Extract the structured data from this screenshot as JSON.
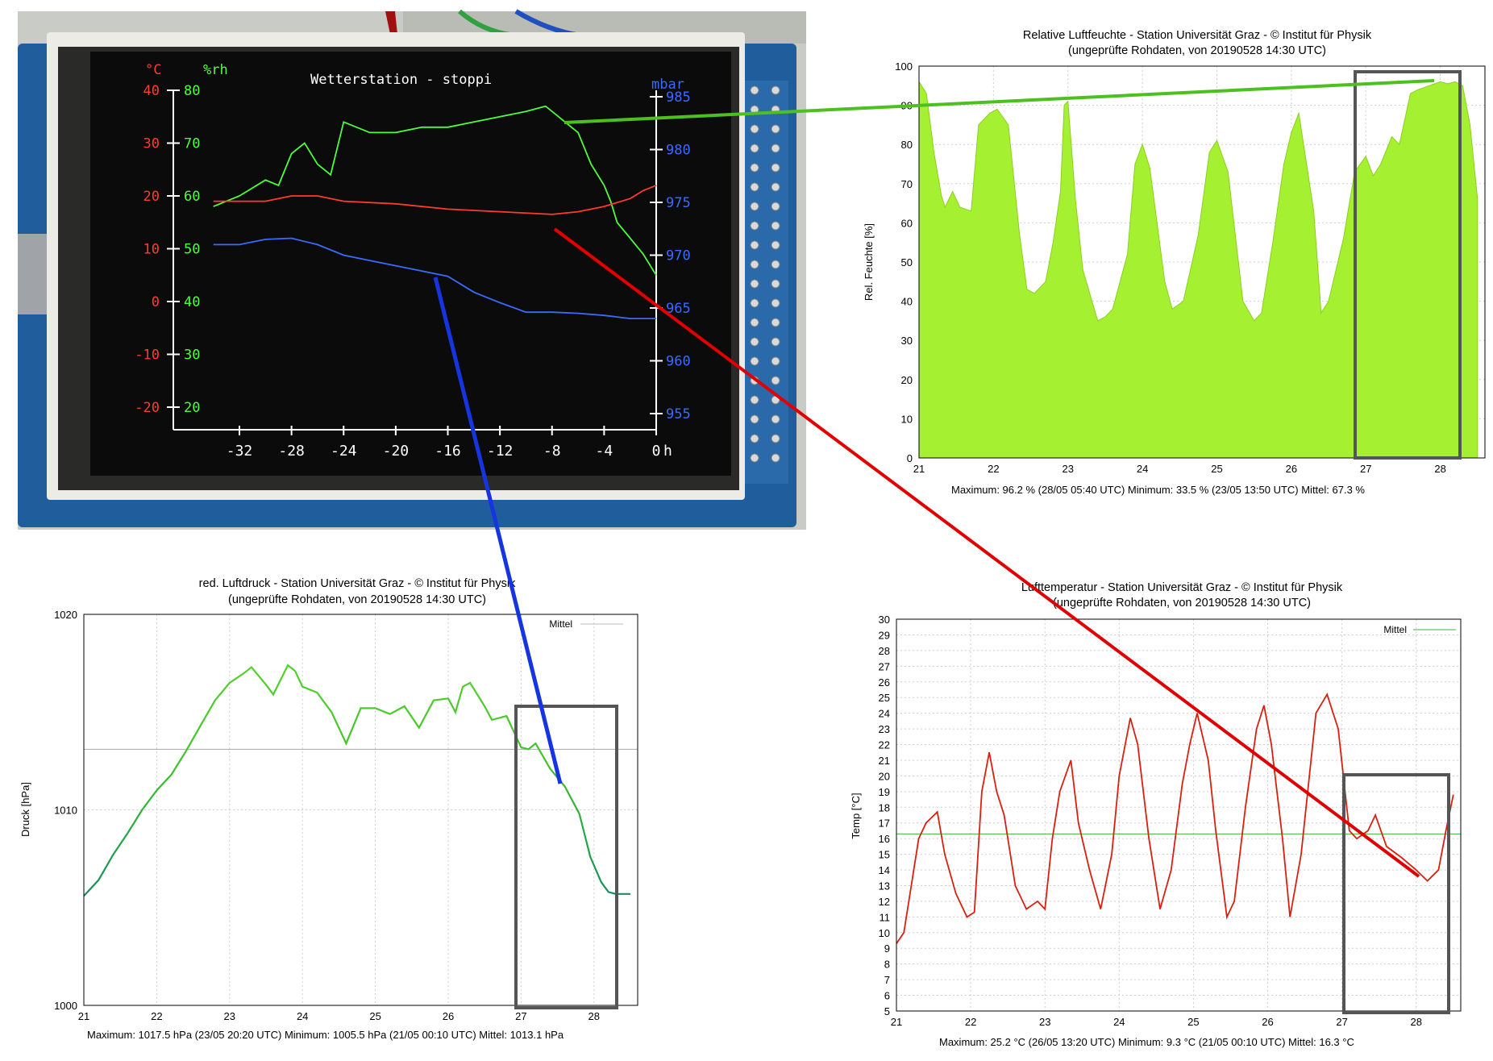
{
  "chart_data": [
    {
      "type": "line",
      "kind": "lcd-photo",
      "title": "Wetterstation - stoppi",
      "x_unit": "h",
      "x_ticks": [
        -32,
        -28,
        -24,
        -20,
        -16,
        -12,
        -8,
        -4,
        0
      ],
      "axes": {
        "temperature": {
          "unit": "°C",
          "ticks": [
            40,
            30,
            20,
            10,
            0,
            -10,
            -20
          ],
          "color": "#ff3b2f"
        },
        "humidity": {
          "unit": "%rh",
          "ticks": [
            80,
            70,
            60,
            50,
            40,
            30,
            20
          ],
          "color": "#4cff3a"
        },
        "pressure": {
          "unit": "mbar",
          "ticks": [
            985,
            980,
            975,
            970,
            965,
            960,
            955
          ],
          "color": "#3a6bff"
        }
      },
      "series": [
        {
          "name": "%rh",
          "color": "#4cff3a",
          "x": [
            -34,
            -32,
            -30,
            -29,
            -28,
            -27,
            -26,
            -25,
            -24,
            -22,
            -20,
            -18,
            -16,
            -14,
            -12,
            -10,
            -8.5,
            -8,
            -7,
            -6,
            -5,
            -4,
            -3.5,
            -3,
            -2,
            -1,
            0
          ],
          "y": [
            58,
            60,
            63,
            62,
            68,
            70,
            66,
            64,
            74,
            72,
            72,
            73,
            73,
            74,
            75,
            76,
            77,
            76,
            74,
            72,
            66,
            62,
            59,
            55,
            52,
            49,
            45
          ]
        },
        {
          "name": "°C",
          "color": "#ff3b2f",
          "x": [
            -34,
            -30,
            -28,
            -26,
            -24,
            -20,
            -16,
            -12,
            -8,
            -6,
            -4,
            -2,
            -1,
            0
          ],
          "y": [
            19,
            19,
            20,
            20,
            19,
            18.5,
            17.5,
            17,
            16.5,
            17,
            18,
            19.5,
            21,
            22
          ]
        },
        {
          "name": "mbar",
          "color": "#3a6bff",
          "x": [
            -34,
            -32,
            -30,
            -28,
            -26,
            -24,
            -22,
            -20,
            -18,
            -16,
            -14,
            -12,
            -10,
            -8,
            -6,
            -4,
            -2,
            0
          ],
          "y": [
            971,
            971,
            971.5,
            971.6,
            971,
            970,
            969.5,
            969,
            968.5,
            968,
            966.5,
            965.5,
            964.6,
            964.6,
            964.5,
            964.3,
            964.0,
            964.0
          ]
        }
      ]
    },
    {
      "type": "area",
      "title": "Relative Luftfeuchte - Station Universität Graz -  © Institut für Physik",
      "subtitle": "(ungeprüfte Rohdaten, von 20190528 14:30 UTC)",
      "ylabel": "Rel. Feuchte [%]",
      "xlim": [
        21,
        28.6
      ],
      "ylim": [
        0,
        100
      ],
      "x_ticks": [
        21,
        22,
        23,
        24,
        25,
        26,
        27,
        28
      ],
      "y_ticks": [
        0,
        10,
        20,
        30,
        40,
        50,
        60,
        70,
        80,
        90,
        100
      ],
      "color": "#a6f032",
      "footer": "Maximum: 96.2 % (28/05 05:40 UTC)   Minimum: 33.5 % (23/05 13:50 UTC)   Mittel: 67.3 %",
      "x": [
        21.0,
        21.1,
        21.2,
        21.3,
        21.35,
        21.45,
        21.55,
        21.7,
        21.8,
        21.95,
        22.05,
        22.2,
        22.35,
        22.45,
        22.55,
        22.7,
        22.8,
        22.9,
        22.95,
        23.0,
        23.1,
        23.2,
        23.4,
        23.5,
        23.6,
        23.8,
        23.9,
        24.0,
        24.1,
        24.3,
        24.4,
        24.55,
        24.75,
        24.9,
        25.0,
        25.15,
        25.35,
        25.5,
        25.6,
        25.75,
        25.9,
        26.0,
        26.1,
        26.3,
        26.4,
        26.5,
        26.7,
        26.85,
        27.0,
        27.1,
        27.2,
        27.35,
        27.45,
        27.6,
        27.7,
        27.85,
        28.0,
        28.1,
        28.2,
        28.3,
        28.4,
        28.5
      ],
      "y": [
        96,
        93,
        78,
        67,
        64,
        68,
        64,
        63,
        85,
        88,
        89,
        85,
        57,
        43,
        42,
        45,
        55,
        68,
        90,
        91,
        66,
        48,
        35,
        36,
        38,
        52,
        75,
        80,
        74,
        45,
        38,
        40,
        57,
        78,
        81,
        73,
        40,
        35,
        37,
        55,
        75,
        83,
        88,
        63,
        37,
        40,
        56,
        73,
        77,
        72,
        75,
        82,
        80,
        93,
        94,
        95,
        96,
        95.5,
        96,
        95,
        85,
        66
      ]
    },
    {
      "type": "line",
      "title": "red. Luftdruck - Station Universität Graz -  © Institut für Physik",
      "subtitle": "(ungeprüfte Rohdaten, von 20190528 14:30 UTC)",
      "ylabel": "Druck [hPa]",
      "xlim": [
        21,
        28.6
      ],
      "ylim": [
        1000,
        1020
      ],
      "x_ticks": [
        21,
        22,
        23,
        24,
        25,
        26,
        27,
        28
      ],
      "y_ticks": [
        1000,
        1010,
        1020
      ],
      "legend": [
        "Mittel"
      ],
      "mean": 1013.1,
      "footer": "Maximum: 1017.5 hPa (23/05 20:20 UTC)   Minimum: 1005.5 hPa (21/05 00:10 UTC)   Mittel: 1013.1 hPa",
      "x": [
        21.0,
        21.2,
        21.4,
        21.6,
        21.8,
        22.0,
        22.2,
        22.4,
        22.6,
        22.8,
        23.0,
        23.2,
        23.3,
        23.5,
        23.6,
        23.8,
        23.9,
        24.0,
        24.2,
        24.4,
        24.6,
        24.8,
        25.0,
        25.2,
        25.4,
        25.6,
        25.8,
        26.0,
        26.1,
        26.2,
        26.3,
        26.5,
        26.6,
        26.8,
        27.0,
        27.1,
        27.2,
        27.4,
        27.6,
        27.8,
        27.95,
        28.1,
        28.2,
        28.3,
        28.5
      ],
      "y": [
        1005.6,
        1006.4,
        1007.7,
        1008.8,
        1010.0,
        1011.0,
        1011.8,
        1013.0,
        1014.3,
        1015.6,
        1016.5,
        1017.0,
        1017.3,
        1016.4,
        1015.9,
        1017.4,
        1017.1,
        1016.3,
        1016.0,
        1015.0,
        1013.4,
        1015.2,
        1015.2,
        1014.9,
        1015.3,
        1014.2,
        1015.6,
        1015.7,
        1015.0,
        1016.3,
        1016.5,
        1015.3,
        1014.6,
        1014.8,
        1013.2,
        1013.1,
        1013.4,
        1012.1,
        1011.2,
        1009.8,
        1007.6,
        1006.3,
        1005.8,
        1005.7,
        1005.7
      ]
    },
    {
      "type": "line",
      "title": "Lufttemperatur - Station Universität Graz -  © Institut für Physik",
      "subtitle": "(ungeprüfte Rohdaten, von 20190528 14:30 UTC)",
      "ylabel": "Temp [°C]",
      "xlim": [
        21,
        28.6
      ],
      "ylim": [
        5,
        30
      ],
      "x_ticks": [
        21,
        22,
        23,
        24,
        25,
        26,
        27,
        28
      ],
      "y_ticks": [
        5,
        6,
        7,
        8,
        9,
        10,
        11,
        12,
        13,
        14,
        15,
        16,
        17,
        18,
        19,
        20,
        21,
        22,
        23,
        24,
        25,
        26,
        27,
        28,
        29,
        30
      ],
      "legend": [
        "Mittel"
      ],
      "mean": 16.3,
      "footer": "Maximum: 25.2 °C (26/05 13:20 UTC)   Minimum:  9.3 °C (21/05 00:10 UTC)   Mittel: 16.3 °C",
      "x": [
        21.0,
        21.1,
        21.2,
        21.3,
        21.4,
        21.55,
        21.65,
        21.8,
        21.95,
        22.05,
        22.15,
        22.25,
        22.35,
        22.45,
        22.6,
        22.75,
        22.9,
        23.0,
        23.1,
        23.2,
        23.35,
        23.45,
        23.6,
        23.75,
        23.9,
        24.0,
        24.15,
        24.25,
        24.4,
        24.55,
        24.7,
        24.85,
        24.95,
        25.05,
        25.2,
        25.3,
        25.45,
        25.55,
        25.7,
        25.85,
        25.95,
        26.05,
        26.2,
        26.3,
        26.45,
        26.55,
        26.65,
        26.8,
        26.95,
        27.1,
        27.2,
        27.35,
        27.45,
        27.6,
        27.8,
        28.0,
        28.15,
        28.3,
        28.4,
        28.5
      ],
      "y": [
        9.3,
        10.0,
        13.0,
        16.0,
        17.0,
        17.7,
        15.0,
        12.5,
        11.0,
        11.3,
        19.0,
        21.5,
        19.0,
        17.5,
        13.0,
        11.5,
        12.0,
        11.5,
        16.0,
        19.0,
        21.0,
        17.0,
        14.0,
        11.5,
        15.0,
        20.0,
        23.7,
        22.0,
        16.0,
        11.5,
        14.0,
        19.5,
        22.0,
        24.0,
        21.0,
        16.5,
        11.0,
        12.0,
        18.0,
        23.0,
        24.5,
        22.0,
        16.0,
        11.0,
        15.0,
        19.5,
        24.0,
        25.2,
        23.0,
        16.5,
        16.0,
        16.5,
        17.5,
        15.5,
        14.8,
        14.0,
        13.3,
        14.0,
        16.5,
        18.8
      ]
    }
  ]
}
